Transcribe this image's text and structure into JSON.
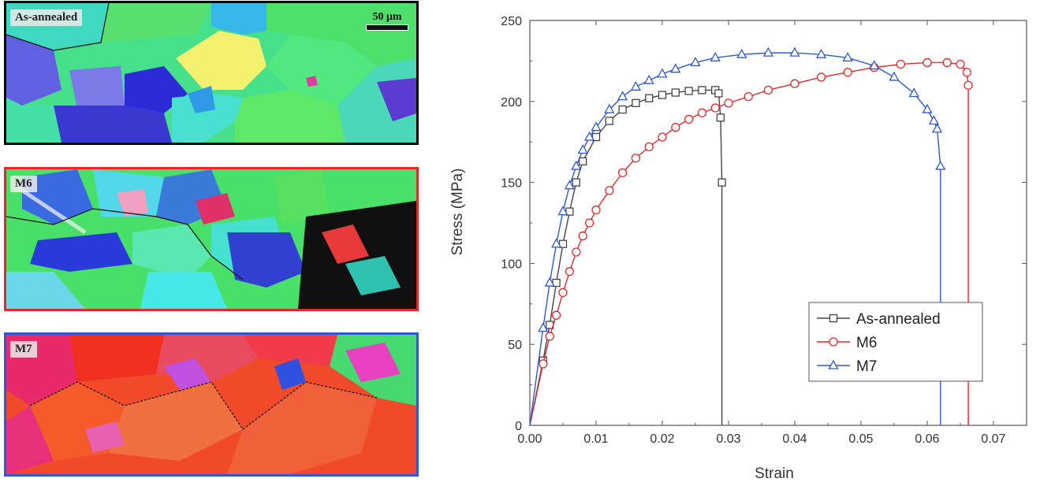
{
  "panels": [
    {
      "label": "As-annealed",
      "scale_bar": "50 μm",
      "border_color": "#000000"
    },
    {
      "label": "M6",
      "border_color": "#e8262a"
    },
    {
      "label": "M7",
      "border_color": "#2f58d8"
    }
  ],
  "chart_data": {
    "type": "line",
    "title": "",
    "xlabel": "Strain",
    "ylabel": "Stress (MPa)",
    "xlim": [
      0.0,
      0.075
    ],
    "ylim": [
      0,
      250
    ],
    "xticks": [
      "0.00",
      "0.01",
      "0.02",
      "0.03",
      "0.04",
      "0.05",
      "0.06",
      "0.07"
    ],
    "yticks": [
      "0",
      "50",
      "100",
      "150",
      "200",
      "250"
    ],
    "grid": false,
    "legend_position": "bottom-right",
    "series": [
      {
        "name": "As-annealed",
        "color": "#444444",
        "marker": "square",
        "x": [
          0.0,
          0.002,
          0.003,
          0.004,
          0.005,
          0.006,
          0.007,
          0.008,
          0.01,
          0.012,
          0.014,
          0.016,
          0.018,
          0.02,
          0.022,
          0.024,
          0.026,
          0.028,
          0.0285,
          0.0288,
          0.029,
          0.029
        ],
        "y": [
          0,
          40,
          62,
          88,
          112,
          132,
          150,
          163,
          178,
          188,
          195,
          199,
          202,
          204,
          205.5,
          206.5,
          207,
          207,
          205,
          190,
          150,
          0
        ]
      },
      {
        "name": "M6",
        "color": "#e8262a",
        "marker": "circle",
        "x": [
          0.0,
          0.002,
          0.003,
          0.004,
          0.005,
          0.006,
          0.007,
          0.008,
          0.009,
          0.01,
          0.012,
          0.014,
          0.016,
          0.018,
          0.02,
          0.022,
          0.024,
          0.026,
          0.028,
          0.03,
          0.033,
          0.036,
          0.04,
          0.044,
          0.048,
          0.052,
          0.056,
          0.06,
          0.063,
          0.065,
          0.066,
          0.0662,
          0.0662
        ],
        "y": [
          0,
          38,
          55,
          68,
          82,
          95,
          107,
          117,
          125,
          133,
          145,
          156,
          165,
          172,
          178,
          184,
          189,
          193,
          196,
          199,
          203,
          207,
          211,
          215,
          218,
          221,
          223,
          224,
          224,
          223,
          218,
          210,
          0
        ]
      },
      {
        "name": "M7",
        "color": "#2f58d8",
        "marker": "triangle",
        "x": [
          0.0,
          0.002,
          0.003,
          0.004,
          0.005,
          0.006,
          0.007,
          0.008,
          0.009,
          0.01,
          0.012,
          0.014,
          0.016,
          0.018,
          0.02,
          0.022,
          0.025,
          0.028,
          0.032,
          0.036,
          0.04,
          0.044,
          0.048,
          0.052,
          0.055,
          0.058,
          0.06,
          0.061,
          0.0615,
          0.062,
          0.062
        ],
        "y": [
          0,
          60,
          88,
          112,
          132,
          148,
          160,
          170,
          178,
          184,
          195,
          203,
          209,
          213,
          217,
          220,
          224,
          227,
          229,
          230,
          230,
          229,
          227,
          222,
          215,
          205,
          195,
          188,
          183,
          160,
          0
        ]
      }
    ]
  }
}
